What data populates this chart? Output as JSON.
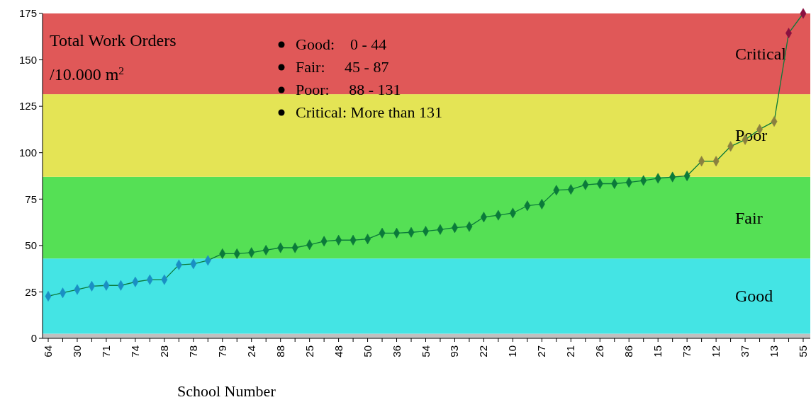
{
  "chart_data": {
    "type": "line",
    "xlabel": "School Number",
    "categories": [
      "64",
      null,
      "30",
      null,
      "71",
      null,
      "74",
      null,
      "28",
      null,
      "78",
      null,
      "79",
      null,
      "24",
      null,
      "88",
      null,
      "25",
      null,
      "48",
      null,
      "50",
      null,
      "36",
      null,
      "54",
      null,
      "93",
      null,
      "22",
      null,
      "10",
      null,
      "27",
      null,
      "21",
      null,
      "26",
      null,
      "86",
      null,
      "15",
      null,
      "73",
      null,
      "12",
      null,
      "37",
      null,
      "13",
      null,
      "55"
    ],
    "series": [
      {
        "color": "#0b7a3a",
        "colors": [
          "#1a8fc4",
          "#1a8fc4",
          "#1a8fc4",
          "#1a8fc4",
          "#1a8fc4",
          "#1a8fc4",
          "#1a8fc4",
          "#1a8fc4",
          "#1a8fc4",
          "#1a8fc4",
          "#1a8fc4",
          "#1a8fc4",
          "#0b7a3a",
          "#0b7a3a",
          "#0b7a3a",
          "#0b7a3a",
          "#0b7a3a",
          "#0b7a3a",
          "#0b7a3a",
          "#0b7a3a",
          "#0b7a3a",
          "#0b7a3a",
          "#0b7a3a",
          "#0b7a3a",
          "#0b7a3a",
          "#0b7a3a",
          "#0b7a3a",
          "#0b7a3a",
          "#0b7a3a",
          "#0b7a3a",
          "#0b7a3a",
          "#0b7a3a",
          "#0b7a3a",
          "#0b7a3a",
          "#0b7a3a",
          "#0b7a3a",
          "#0b7a3a",
          "#0b7a3a",
          "#0b7a3a",
          "#0b7a3a",
          "#0b7a3a",
          "#0b7a3a",
          "#0b7a3a",
          "#0b7a3a",
          "#0b7a3a",
          "#8a8040",
          "#8a8040",
          "#8a8040",
          "#8a8040",
          "#8a8040",
          "#8a8040",
          "#8a1040",
          "#8a1040"
        ],
        "values": [
          22.7,
          24.5,
          26.3,
          28.1,
          28.5,
          28.5,
          30.4,
          31.6,
          31.6,
          39.6,
          40.1,
          42.0,
          45.6,
          45.6,
          46.2,
          47.5,
          48.8,
          48.8,
          50.4,
          52.3,
          52.9,
          52.9,
          53.5,
          56.7,
          56.7,
          57.1,
          57.7,
          58.6,
          59.6,
          60.2,
          65.3,
          66.3,
          67.5,
          71.4,
          72.3,
          79.8,
          80.2,
          82.7,
          83.3,
          83.3,
          84.0,
          85.0,
          86.2,
          86.9,
          87.5,
          95.4,
          95.4,
          103.4,
          107,
          112.6,
          116.8,
          164.4,
          175
        ]
      }
    ],
    "ylim": [
      0,
      175
    ],
    "yticks": [
      0,
      25,
      50,
      75,
      100,
      125,
      150,
      175
    ],
    "marker": "diamond",
    "line_style": "solid",
    "grid": false,
    "bands": [
      {
        "axis": "y",
        "from": 0,
        "to": 2.5,
        "color": "#c0c0c0"
      },
      {
        "axis": "y",
        "from": 2.5,
        "to": 43,
        "color": "#44e4e4",
        "label": "Good"
      },
      {
        "axis": "y",
        "from": 43,
        "to": 87,
        "color": "#55e055",
        "label": "Fair"
      },
      {
        "axis": "y",
        "from": 87,
        "to": 131.5,
        "color": "#e4e455",
        "label": "Poor"
      },
      {
        "axis": "y",
        "from": 131.5,
        "to": 175,
        "color": "#e05858",
        "label": "Critical"
      }
    ],
    "annotations": [
      "Total Work Orders",
      "/10.000 m$^{2}$",
      "Good:    0 - 44",
      "Fair:     45 - 87",
      "Poor:     88 - 131",
      "Critical: More than 131"
    ]
  }
}
